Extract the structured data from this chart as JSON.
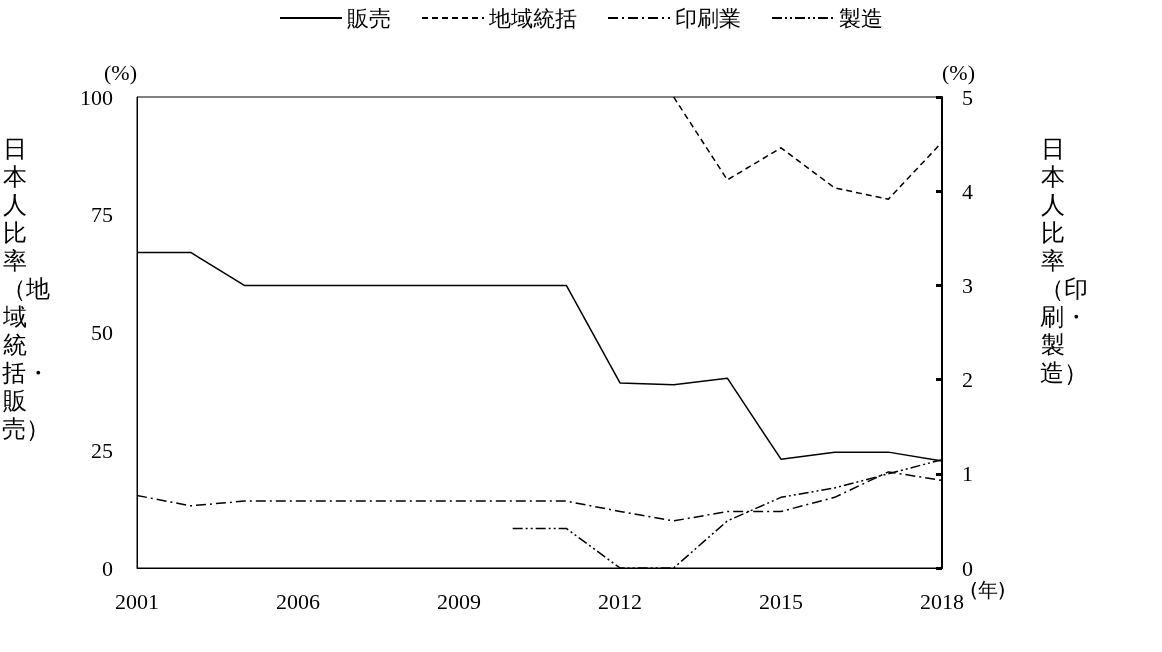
{
  "chart_data": {
    "type": "line",
    "categories": [
      "2001",
      null,
      null,
      "2006",
      null,
      null,
      "2009",
      null,
      null,
      "2012",
      null,
      null,
      "2015",
      null,
      null,
      "2018"
    ],
    "xlabel": "(年)",
    "ylabel": "日本人比率（地域統括・販売）",
    "y2label": "日本人比率（印刷・製造）",
    "annotations": [
      "(%)",
      "(%)"
    ],
    "ylim": [
      0,
      100
    ],
    "yticks": [
      0,
      25,
      50,
      75,
      100
    ],
    "y2lim": [
      0,
      5
    ],
    "y2ticks": [
      0,
      1,
      2,
      3,
      4,
      5
    ],
    "grid": false,
    "legend": "top",
    "marker": "none",
    "series": [
      {
        "name": "販売",
        "color": "#000000",
        "line_style": "solid",
        "values": [
          67,
          67,
          60,
          60,
          60,
          60,
          60,
          60,
          60,
          39.3,
          38.9,
          40.3,
          23.1,
          24.6,
          24.6,
          22.7
        ]
      },
      {
        "name": "地域統括",
        "color": "#000000",
        "line_style": "dashed",
        "values": [
          null,
          null,
          null,
          null,
          null,
          null,
          null,
          null,
          null,
          null,
          100,
          82.4,
          89.2,
          80.7,
          78.3,
          90.4
        ]
      },
      {
        "name": "印刷業",
        "color": "#000000",
        "line_style": "dashdot",
        "axis": "y2",
        "values": [
          0.77,
          0.66,
          0.71,
          0.71,
          0.71,
          0.71,
          0.71,
          0.71,
          0.71,
          0.6,
          0.5,
          0.6,
          0.6,
          0.75,
          1.02,
          0.93
        ]
      },
      {
        "name": "製造",
        "color": "#000000",
        "line_style": "dashdotdot",
        "axis": "y2",
        "values": [
          null,
          null,
          null,
          null,
          null,
          null,
          null,
          0.42,
          0.42,
          0,
          0,
          0.5,
          0.75,
          0.85,
          1.0,
          1.15
        ]
      }
    ]
  }
}
